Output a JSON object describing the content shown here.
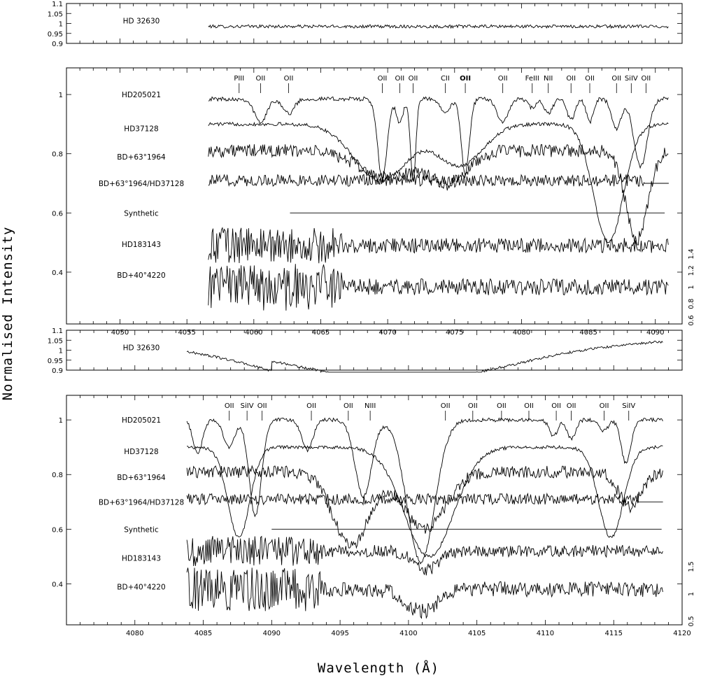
{
  "figure": {
    "xlabel": "Wavelength (Å)",
    "ylabel": "Normalised Intensity"
  },
  "colors": {
    "ink": "#000000",
    "background": "#ffffff"
  },
  "chart_data": [
    {
      "id": "panel-a-reference",
      "type": "line",
      "xlim": [
        4046,
        4092
      ],
      "ylim": [
        0.9,
        1.1
      ],
      "yticks": [
        "0.9",
        "0.95",
        "1",
        "1.05",
        "1.1"
      ],
      "xticks": [],
      "series": [
        {
          "name": "HD 32630",
          "style": "noisy-flat",
          "x_range": [
            4056.6,
            4091.0
          ],
          "level": 0.985,
          "noise": 0.008
        }
      ],
      "grid": false
    },
    {
      "id": "panel-a-main",
      "type": "line",
      "xlim": [
        4046,
        4092
      ],
      "ylim": [
        0.225,
        1.09
      ],
      "yticks": [
        "0.4",
        "0.6",
        "0.8",
        "1"
      ],
      "xticks": [
        "4050",
        "4055",
        "4060",
        "4065",
        "4070",
        "4075",
        "4080",
        "4085",
        "4090"
      ],
      "right_axis_ticks": [
        "0.6",
        "0.8",
        "1",
        "1.2",
        "1.4"
      ],
      "line_labels": [
        {
          "text": "PIII",
          "x": 4058.9
        },
        {
          "text": "OII",
          "x": 4060.5
        },
        {
          "text": "OII",
          "x": 4062.6
        },
        {
          "text": "OII",
          "x": 4069.6
        },
        {
          "text": "OII",
          "x": 4070.9
        },
        {
          "text": "OII",
          "x": 4071.9
        },
        {
          "text": "CII",
          "x": 4074.3
        },
        {
          "text": "OII",
          "x": 4075.8
        },
        {
          "text": "OII",
          "x": 4078.6
        },
        {
          "text": "FeIII",
          "x": 4080.8
        },
        {
          "text": "NII",
          "x": 4082.0
        },
        {
          "text": "OII",
          "x": 4083.7
        },
        {
          "text": "OII",
          "x": 4085.1
        },
        {
          "text": "OII",
          "x": 4087.1
        },
        {
          "text": "SiIV",
          "x": 4088.2
        },
        {
          "text": "OII",
          "x": 4089.3
        }
      ],
      "series": [
        {
          "name": "HD205021",
          "label_y": 1.0,
          "x_range": [
            4056.6,
            4091.0
          ],
          "level": 0.985,
          "noise": 0.007,
          "lines": [
            [
              4060.5,
              0.08,
              0.45
            ],
            [
              4062.6,
              0.05,
              0.4
            ],
            [
              4069.6,
              0.27,
              0.35
            ],
            [
              4070.9,
              0.08,
              0.25
            ],
            [
              4071.9,
              0.28,
              0.2
            ],
            [
              4074.3,
              0.04,
              0.4
            ],
            [
              4075.8,
              0.25,
              0.3
            ],
            [
              4078.6,
              0.08,
              0.4
            ],
            [
              4080.8,
              0.03,
              0.3
            ],
            [
              4082.0,
              0.05,
              0.3
            ],
            [
              4083.7,
              0.07,
              0.3
            ],
            [
              4085.1,
              0.08,
              0.25
            ],
            [
              4087.1,
              0.1,
              0.35
            ],
            [
              4088.9,
              0.23,
              0.5
            ]
          ]
        },
        {
          "name": "HD37128",
          "label_y": 0.885,
          "x_range": [
            4056.6,
            4091.0
          ],
          "level": 0.9,
          "noise": 0.006,
          "lines": [
            [
              4069.5,
              0.19,
              2.0
            ],
            [
              4075.4,
              0.14,
              1.7
            ],
            [
              4086.5,
              0.4,
              1.1
            ]
          ]
        },
        {
          "name": "BD+63°1964",
          "label_y": 0.79,
          "x_range": [
            4056.6,
            4091.0
          ],
          "level": 0.81,
          "noise": 0.022,
          "lines": [
            [
              4069.9,
              0.09,
              2.0
            ],
            [
              4074.6,
              0.11,
              1.4
            ],
            [
              4088.6,
              0.3,
              0.8
            ]
          ]
        },
        {
          "name": "BD+63°1964/HD37128",
          "label_y": 0.7,
          "x_range": [
            4056.6,
            4089.2
          ],
          "level": 0.71,
          "noise": 0.02,
          "tail_to": 4091.0,
          "tail_level": 0.7
        },
        {
          "name": "Synthetic",
          "label_y": 0.6,
          "x_range": [
            4062.7,
            4091.0
          ],
          "level": 0.6,
          "noise": 0.0
        },
        {
          "name": "HD183143",
          "label_y": 0.495,
          "x_range": [
            4056.6,
            4091.0
          ],
          "level": 0.49,
          "noise": 0.025,
          "noise_early": 0.06
        },
        {
          "name": "BD+40°4220",
          "label_y": 0.39,
          "x_range": [
            4056.6,
            4091.0
          ],
          "level": 0.35,
          "noise": 0.028,
          "noise_early": 0.08
        }
      ],
      "grid": false
    },
    {
      "id": "panel-b-reference",
      "type": "line",
      "xlim": [
        4075,
        4120
      ],
      "ylim": [
        0.9,
        1.1
      ],
      "yticks": [
        "0.9",
        "0.95",
        "1",
        "1.05",
        "1.1"
      ],
      "xticks": [],
      "series": [
        {
          "name": "HD 32630",
          "style": "broad-dip",
          "x_range": [
            4083.8,
            4118.6
          ],
          "level": 1.0,
          "noise": 0.006
        }
      ],
      "grid": false
    },
    {
      "id": "panel-b-main",
      "type": "line",
      "xlim": [
        4075,
        4120
      ],
      "ylim": [
        0.25,
        1.09
      ],
      "yticks": [
        "0.4",
        "0.6",
        "0.8",
        "1"
      ],
      "xticks": [
        "4080",
        "4085",
        "4090",
        "4095",
        "4100",
        "4105",
        "4110",
        "4115",
        "4120"
      ],
      "right_axis_ticks": [
        "0.5",
        "1",
        "1.5"
      ],
      "line_labels": [
        {
          "text": "OII",
          "x": 4086.9
        },
        {
          "text": "SiIV",
          "x": 4088.2
        },
        {
          "text": "OII",
          "x": 4089.3
        },
        {
          "text": "OII",
          "x": 4092.9
        },
        {
          "text": "OII",
          "x": 4095.6
        },
        {
          "text": "NIII",
          "x": 4097.2
        },
        {
          "text": "OII",
          "x": 4102.7
        },
        {
          "text": "OII",
          "x": 4104.7
        },
        {
          "text": "OII",
          "x": 4106.8
        },
        {
          "text": "OII",
          "x": 4108.8
        },
        {
          "text": "OII",
          "x": 4110.8
        },
        {
          "text": "OII",
          "x": 4111.9
        },
        {
          "text": "OII",
          "x": 4114.3
        },
        {
          "text": "SiIV",
          "x": 4116.1
        }
      ],
      "series": [
        {
          "name": "HD205021",
          "label_y": 1.0,
          "x_range": [
            4083.8,
            4118.6
          ],
          "level": 1.0,
          "noise": 0.007,
          "lines": [
            [
              4084.6,
              0.12,
              0.35
            ],
            [
              4086.9,
              0.1,
              0.4
            ],
            [
              4088.8,
              0.35,
              0.45
            ],
            [
              4092.6,
              0.11,
              0.4
            ],
            [
              4096.7,
              0.28,
              0.6
            ],
            [
              4100.9,
              0.52,
              1.0
            ],
            [
              4110.6,
              0.06,
              0.3
            ],
            [
              4111.9,
              0.07,
              0.3
            ],
            [
              4114.3,
              0.04,
              0.3
            ],
            [
              4115.9,
              0.16,
              0.35
            ]
          ]
        },
        {
          "name": "HD37128",
          "label_y": 0.885,
          "x_range": [
            4083.8,
            4118.6
          ],
          "level": 0.9,
          "noise": 0.006,
          "lines": [
            [
              4087.6,
              0.33,
              0.8
            ],
            [
              4101.5,
              0.4,
              1.8
            ],
            [
              4114.8,
              0.33,
              0.9
            ]
          ]
        },
        {
          "name": "BD+63°1964",
          "label_y": 0.79,
          "x_range": [
            4083.8,
            4118.6
          ],
          "level": 0.81,
          "noise": 0.022,
          "lines": [
            [
              4095.8,
              0.27,
              1.3
            ],
            [
              4101.2,
              0.21,
              1.5
            ],
            [
              4116.2,
              0.13,
              0.8
            ]
          ]
        },
        {
          "name": "BD+63°1964/HD37128",
          "label_y": 0.7,
          "x_range": [
            4083.8,
            4116.8
          ],
          "level": 0.71,
          "noise": 0.02,
          "tail_to": 4118.6,
          "tail_level": 0.7
        },
        {
          "name": "Synthetic",
          "label_y": 0.6,
          "x_range": [
            4090.0,
            4118.6
          ],
          "level": 0.6,
          "noise": 0.0
        },
        {
          "name": "HD183143",
          "label_y": 0.495,
          "x_range": [
            4083.8,
            4118.6
          ],
          "level": 0.52,
          "noise": 0.022,
          "noise_early": 0.055,
          "lines": [
            [
              4101.3,
              0.07,
              0.9
            ]
          ]
        },
        {
          "name": "BD+40°4220",
          "label_y": 0.39,
          "x_range": [
            4083.8,
            4118.6
          ],
          "level": 0.38,
          "noise": 0.028,
          "noise_early": 0.08,
          "lines": [
            [
              4101.0,
              0.08,
              1.2
            ]
          ]
        }
      ],
      "grid": false
    }
  ]
}
